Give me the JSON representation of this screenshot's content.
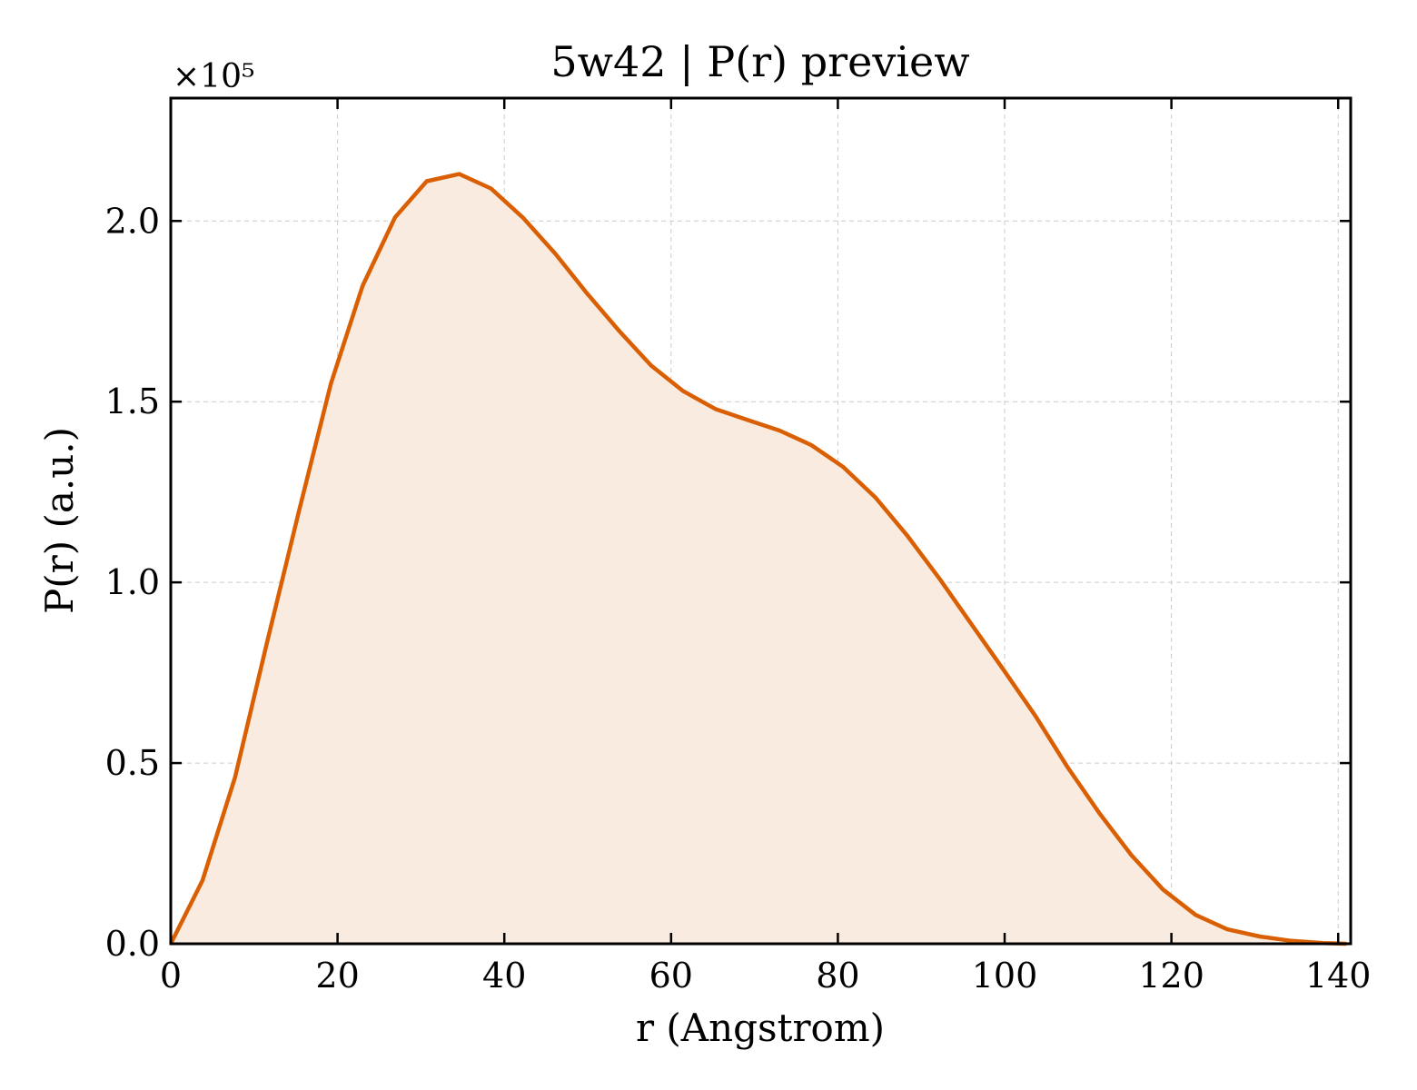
{
  "chart_data": {
    "type": "area",
    "title": "5w42 | P(r) preview",
    "xlabel": "r (Angstrom)",
    "ylabel": "P(r) (a.u.)",
    "y_multiplier": "×10⁵",
    "xlim": [
      0,
      141.5
    ],
    "ylim": [
      0,
      2.34
    ],
    "x_ticks": [
      0,
      20,
      40,
      60,
      80,
      100,
      120,
      140
    ],
    "x_tick_labels": [
      "0",
      "20",
      "40",
      "60",
      "80",
      "100",
      "120",
      "140"
    ],
    "y_ticks": [
      0.0,
      0.5,
      1.0,
      1.5,
      2.0
    ],
    "y_tick_labels": [
      "0.0",
      "0.5",
      "1.0",
      "1.5",
      "2.0"
    ],
    "grid": true,
    "line_color": "#d95f02",
    "fill_color": "#f9ebe0",
    "series": [
      {
        "x": [
          0,
          3.8,
          7.7,
          11.5,
          15.4,
          19.2,
          23.0,
          26.9,
          30.7,
          34.6,
          38.4,
          42.2,
          46.1,
          49.9,
          53.8,
          57.6,
          61.4,
          65.3,
          69.1,
          73.0,
          76.8,
          80.6,
          84.5,
          88.3,
          92.2,
          96.0,
          99.8,
          103.7,
          107.5,
          111.4,
          115.2,
          119.0,
          122.9,
          126.7,
          130.6,
          134.4,
          138.2,
          141.0
        ],
        "values": [
          0,
          0.175,
          0.46,
          0.83,
          1.2,
          1.55,
          1.82,
          2.01,
          2.11,
          2.13,
          2.09,
          2.01,
          1.91,
          1.8,
          1.695,
          1.6,
          1.53,
          1.48,
          1.45,
          1.42,
          1.38,
          1.32,
          1.235,
          1.13,
          1.01,
          0.885,
          0.76,
          0.63,
          0.49,
          0.36,
          0.245,
          0.15,
          0.08,
          0.04,
          0.02,
          0.008,
          0.002,
          0.0
        ]
      }
    ]
  }
}
